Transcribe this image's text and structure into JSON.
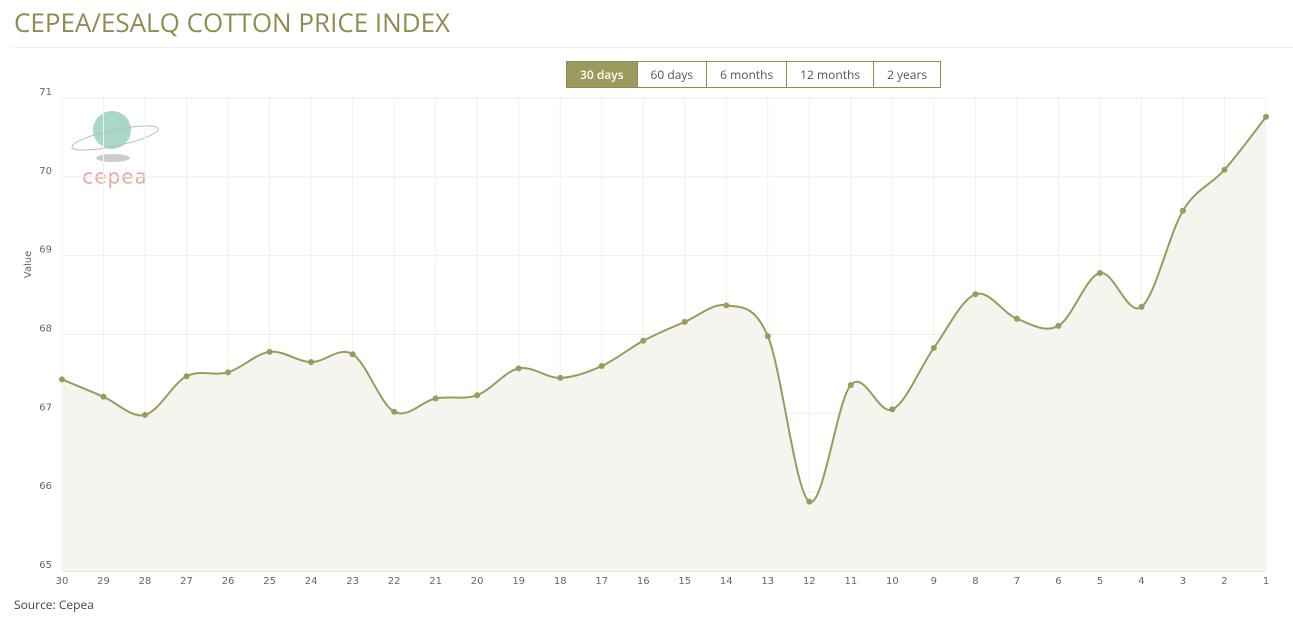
{
  "title": "CEPEA/ESALQ COTTON PRICE INDEX",
  "ranges": [
    "30 days",
    "60 days",
    "6 months",
    "12 months",
    "2 years"
  ],
  "active_range": 0,
  "logo": "cepea",
  "source": "Source: Cepea",
  "chart_data": {
    "type": "line",
    "y_label": "Value",
    "categories": [
      "30",
      "29",
      "28",
      "27",
      "26",
      "25",
      "24",
      "23",
      "22",
      "21",
      "20",
      "19",
      "18",
      "17",
      "16",
      "15",
      "14",
      "13",
      "12",
      "11",
      "10",
      "9",
      "8",
      "7",
      "6",
      "5",
      "4",
      "3",
      "2",
      "1"
    ],
    "values": [
      67.43,
      67.21,
      66.98,
      67.47,
      67.52,
      67.78,
      67.65,
      67.75,
      67.02,
      67.19,
      67.23,
      67.57,
      67.45,
      67.6,
      67.92,
      68.16,
      68.37,
      67.98,
      65.88,
      67.36,
      67.05,
      67.83,
      68.51,
      68.2,
      68.11,
      68.78,
      68.35,
      69.57,
      70.09,
      70.76
    ],
    "color": "#9c9a5c",
    "ylim": [
      65,
      71
    ],
    "yticks": [
      65,
      66,
      67,
      68,
      69,
      70,
      71
    ],
    "grid": true
  }
}
